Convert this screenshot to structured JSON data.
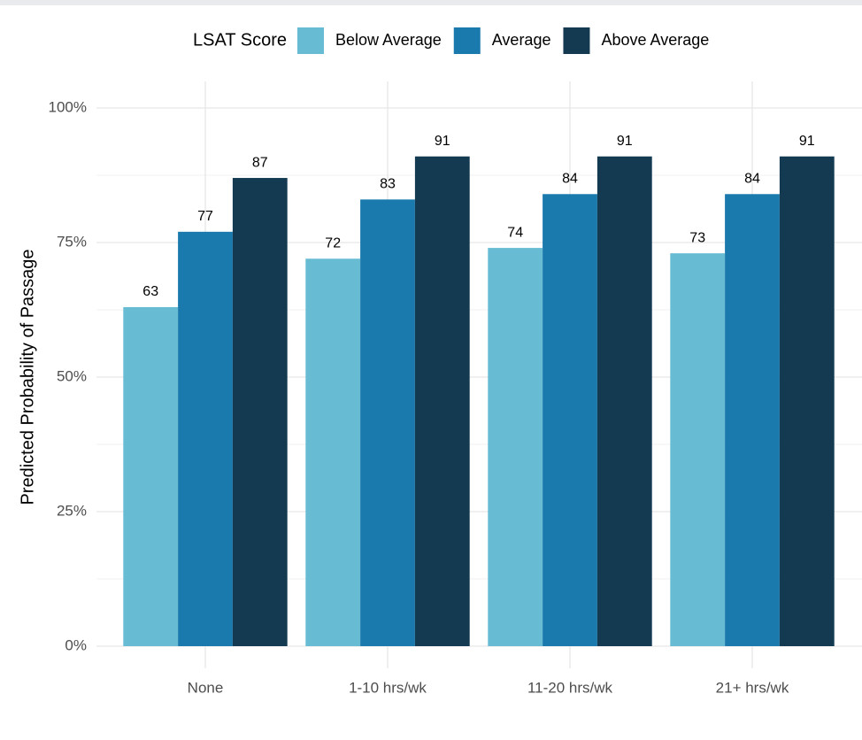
{
  "chart_data": {
    "type": "bar",
    "ylabel": "Predicted Probability of Passage",
    "legend_title": "LSAT Score",
    "legend_position": "top",
    "categories": [
      "None",
      "1-10 hrs/wk",
      "11-20 hrs/wk",
      "21+ hrs/wk"
    ],
    "series": [
      {
        "name": "Below Average",
        "color": "#67bcd4",
        "values": [
          63,
          72,
          74,
          73
        ]
      },
      {
        "name": "Average",
        "color": "#1a7aad",
        "values": [
          77,
          83,
          84,
          84
        ]
      },
      {
        "name": "Above Average",
        "color": "#143a52",
        "values": [
          87,
          91,
          91,
          91
        ]
      }
    ],
    "ylim": [
      0,
      100
    ],
    "yticks": [
      {
        "value": 0,
        "label": "0%"
      },
      {
        "value": 25,
        "label": "25%"
      },
      {
        "value": 50,
        "label": "50%"
      },
      {
        "value": 75,
        "label": "75%"
      },
      {
        "value": 100,
        "label": "100%"
      }
    ],
    "grid": true
  }
}
